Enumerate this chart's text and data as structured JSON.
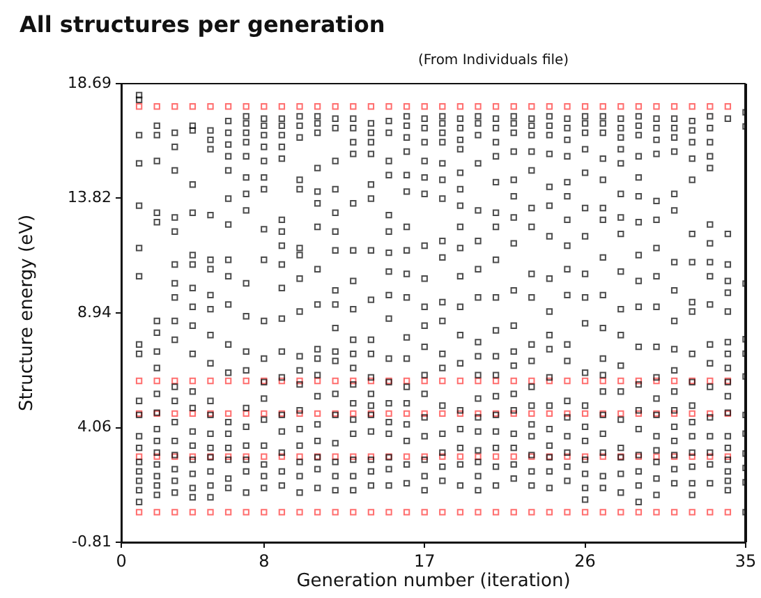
{
  "chart_data": {
    "type": "scatter",
    "title": "All structures per generation",
    "subtitle": "(From Individuals file)",
    "xlabel": "Generation number (iteration)",
    "ylabel": "Structure energy (eV)",
    "xlim": [
      0,
      35
    ],
    "xticks": [
      0,
      8,
      17,
      26,
      35
    ],
    "ylim": [
      -0.81,
      18.69
    ],
    "yticks": [
      -0.81,
      4.06,
      8.94,
      13.82,
      18.69
    ],
    "grid": false,
    "legend": false,
    "marker": "square",
    "series": [
      {
        "color": "#ff3030",
        "x": [
          1,
          2,
          3,
          4,
          5,
          6,
          7,
          8,
          9,
          10,
          11,
          12,
          13,
          14,
          15,
          16,
          17,
          18,
          19,
          20,
          21,
          22,
          23,
          24,
          25,
          26,
          27,
          28,
          29,
          30,
          31,
          32,
          33,
          34
        ],
        "values": [
          17.72,
          17.72,
          17.72,
          17.72,
          17.72,
          17.72,
          17.72,
          17.72,
          17.72,
          17.72,
          17.72,
          17.72,
          17.72,
          17.72,
          17.72,
          17.72,
          17.72,
          17.72,
          17.72,
          17.72,
          17.72,
          17.72,
          17.72,
          17.72,
          17.72,
          17.72,
          17.72,
          17.72,
          17.72,
          17.72,
          17.72,
          17.72,
          17.72,
          17.72
        ]
      },
      {
        "color": "#ff3030",
        "x": [
          1,
          2,
          3,
          4,
          5,
          6,
          7,
          8,
          9,
          10,
          11,
          12,
          13,
          14,
          15,
          16,
          17,
          18,
          19,
          20,
          21,
          22,
          23,
          24,
          25,
          26,
          27,
          28,
          29,
          30,
          31,
          32,
          33,
          34
        ],
        "values": [
          6.05,
          6.05,
          6.05,
          6.05,
          6.05,
          6.05,
          6.05,
          6.05,
          6.05,
          6.05,
          6.05,
          6.05,
          6.05,
          6.05,
          6.05,
          6.05,
          6.05,
          6.05,
          6.05,
          6.05,
          6.05,
          6.05,
          6.05,
          6.05,
          6.05,
          6.05,
          6.05,
          6.05,
          6.05,
          6.05,
          6.05,
          6.05,
          6.05,
          6.05
        ]
      },
      {
        "color": "#ff3030",
        "x": [
          1,
          2,
          3,
          4,
          5,
          6,
          7,
          8,
          9,
          10,
          11,
          12,
          13,
          14,
          15,
          16,
          17,
          18,
          19,
          20,
          21,
          22,
          23,
          24,
          25,
          26,
          27,
          28,
          29,
          30,
          31,
          32,
          33,
          34
        ],
        "values": [
          4.66,
          4.66,
          4.66,
          4.66,
          4.66,
          4.66,
          4.66,
          4.66,
          4.66,
          4.66,
          4.66,
          4.66,
          4.66,
          4.66,
          4.66,
          4.66,
          4.66,
          4.66,
          4.66,
          4.66,
          4.66,
          4.66,
          4.66,
          4.66,
          4.66,
          4.66,
          4.66,
          4.66,
          4.66,
          4.66,
          4.66,
          4.66,
          4.66,
          4.66
        ]
      },
      {
        "color": "#ff3030",
        "x": [
          1,
          2,
          3,
          4,
          5,
          6,
          7,
          8,
          9,
          10,
          11,
          12,
          13,
          14,
          15,
          16,
          17,
          18,
          19,
          20,
          21,
          22,
          23,
          24,
          25,
          26,
          27,
          28,
          29,
          30,
          31,
          32,
          33,
          34
        ],
        "values": [
          2.83,
          2.83,
          2.83,
          2.83,
          2.83,
          2.83,
          2.83,
          2.83,
          2.83,
          2.83,
          2.83,
          2.83,
          2.83,
          2.83,
          2.83,
          2.83,
          2.83,
          2.83,
          2.83,
          2.83,
          2.83,
          2.83,
          2.83,
          2.83,
          2.83,
          2.83,
          2.83,
          2.83,
          2.83,
          2.83,
          2.83,
          2.83,
          2.83,
          2.83
        ]
      },
      {
        "color": "#ff3030",
        "x": [
          1,
          2,
          3,
          4,
          5,
          6,
          7,
          8,
          9,
          10,
          11,
          12,
          13,
          14,
          15,
          16,
          17,
          18,
          19,
          20,
          21,
          22,
          23,
          24,
          25,
          26,
          27,
          28,
          29,
          30,
          31,
          32,
          33,
          34
        ],
        "values": [
          0.47,
          0.47,
          0.47,
          0.47,
          0.47,
          0.47,
          0.47,
          0.47,
          0.47,
          0.47,
          0.47,
          0.47,
          0.47,
          0.47,
          0.47,
          0.47,
          0.47,
          0.47,
          0.47,
          0.47,
          0.47,
          0.47,
          0.47,
          0.47,
          0.47,
          0.47,
          0.47,
          0.47,
          0.47,
          0.47,
          0.47,
          0.47,
          0.47,
          0.47
        ]
      },
      {
        "color": "#000000",
        "x": [
          1,
          1,
          1,
          1,
          1,
          1,
          1,
          1,
          1,
          1,
          1,
          1,
          1,
          1,
          1,
          1,
          1,
          1
        ],
        "values": [
          18.2,
          18.0,
          16.5,
          15.3,
          13.5,
          11.7,
          10.5,
          7.6,
          7.2,
          5.2,
          4.6,
          3.7,
          3.2,
          2.6,
          2.2,
          1.8,
          1.4,
          0.9
        ]
      },
      {
        "color": "#000000",
        "x": [
          2,
          2,
          2,
          2,
          2,
          2,
          2,
          2,
          2,
          2,
          2,
          2,
          2,
          2,
          2,
          2,
          2,
          2
        ],
        "values": [
          16.9,
          16.5,
          15.4,
          13.2,
          12.8,
          8.6,
          8.1,
          7.3,
          6.6,
          5.5,
          4.7,
          4.0,
          3.5,
          3.0,
          2.5,
          2.0,
          1.6,
          1.2
        ]
      },
      {
        "color": "#000000",
        "x": [
          3,
          3,
          3,
          3,
          3,
          3,
          3,
          3,
          3,
          3,
          3,
          3,
          3,
          3,
          3,
          3,
          3,
          3
        ],
        "values": [
          16.6,
          16.0,
          15.0,
          13.0,
          12.4,
          11.0,
          10.2,
          9.6,
          8.6,
          7.8,
          5.8,
          5.2,
          4.3,
          3.5,
          2.9,
          2.3,
          1.8,
          1.3
        ]
      },
      {
        "color": "#000000",
        "x": [
          4,
          4,
          4,
          4,
          4,
          4,
          4,
          4,
          4,
          4,
          4,
          4,
          4,
          4,
          4,
          4,
          4,
          4
        ],
        "values": [
          16.9,
          16.7,
          14.4,
          13.2,
          11.4,
          11.0,
          10.0,
          9.2,
          8.4,
          7.2,
          5.6,
          4.9,
          3.9,
          3.3,
          2.7,
          2.1,
          1.5,
          1.1
        ]
      },
      {
        "color": "#000000",
        "x": [
          5,
          5,
          5,
          5,
          5,
          5,
          5,
          5,
          5,
          5,
          5,
          5,
          5,
          5,
          5,
          5,
          5,
          5
        ],
        "values": [
          16.7,
          16.3,
          15.9,
          13.1,
          11.2,
          10.8,
          9.7,
          9.1,
          8.0,
          6.8,
          5.2,
          4.6,
          3.8,
          3.2,
          2.8,
          2.2,
          1.6,
          1.1
        ]
      },
      {
        "color": "#000000",
        "x": [
          6,
          6,
          6,
          6,
          6,
          6,
          6,
          6,
          6,
          6,
          6,
          6,
          6,
          6,
          6,
          6,
          6,
          6
        ],
        "values": [
          17.1,
          16.6,
          16.1,
          15.6,
          15.0,
          13.8,
          12.7,
          11.2,
          10.5,
          9.3,
          7.6,
          6.4,
          4.3,
          3.8,
          3.2,
          2.7,
          1.9,
          1.5
        ]
      },
      {
        "color": "#000000",
        "x": [
          7,
          7,
          7,
          7,
          7,
          7,
          7,
          7,
          7,
          7,
          7,
          7,
          7,
          7,
          7,
          7,
          7,
          7
        ],
        "values": [
          17.3,
          17.0,
          16.6,
          16.2,
          15.6,
          14.7,
          14.0,
          13.3,
          10.2,
          8.8,
          7.3,
          6.5,
          4.9,
          4.1,
          3.3,
          2.7,
          2.2,
          1.3
        ]
      },
      {
        "color": "#000000",
        "x": [
          8,
          8,
          8,
          8,
          8,
          8,
          8,
          8,
          8,
          8,
          8,
          8,
          8,
          8,
          8,
          8,
          8,
          8
        ],
        "values": [
          17.2,
          16.9,
          16.5,
          16.0,
          15.4,
          14.7,
          14.2,
          12.5,
          11.2,
          8.6,
          7.0,
          6.0,
          5.3,
          4.4,
          3.3,
          2.5,
          2.0,
          1.5
        ]
      },
      {
        "color": "#000000",
        "x": [
          9,
          9,
          9,
          9,
          9,
          9,
          9,
          9,
          9,
          9,
          9,
          9,
          9,
          9,
          9,
          9,
          9,
          9
        ],
        "values": [
          17.2,
          16.9,
          16.5,
          16.0,
          15.5,
          12.9,
          12.4,
          11.8,
          11.0,
          10.0,
          8.7,
          7.3,
          6.2,
          4.6,
          3.9,
          3.0,
          2.2,
          1.6
        ]
      },
      {
        "color": "#000000",
        "x": [
          10,
          10,
          10,
          10,
          10,
          10,
          10,
          10,
          10,
          10,
          10,
          10,
          10,
          10,
          10,
          10,
          10,
          10
        ],
        "values": [
          17.3,
          16.9,
          16.4,
          14.6,
          14.2,
          11.7,
          11.4,
          10.4,
          9.0,
          7.1,
          6.5,
          5.9,
          4.8,
          4.0,
          3.3,
          2.6,
          2.0,
          1.3
        ]
      },
      {
        "color": "#000000",
        "x": [
          11,
          11,
          11,
          11,
          11,
          11,
          11,
          11,
          11,
          11,
          11,
          11,
          11,
          11,
          11,
          11,
          11,
          11
        ],
        "values": [
          17.3,
          17.0,
          16.6,
          15.1,
          14.1,
          13.6,
          12.6,
          10.8,
          9.3,
          7.4,
          7.0,
          6.3,
          5.4,
          4.2,
          3.5,
          2.8,
          2.3,
          1.5
        ]
      },
      {
        "color": "#000000",
        "x": [
          12,
          12,
          12,
          12,
          12,
          12,
          12,
          12,
          12,
          12,
          12,
          12,
          12,
          12,
          12,
          12,
          12,
          12
        ],
        "values": [
          17.2,
          16.8,
          15.4,
          14.2,
          13.2,
          12.4,
          11.6,
          9.9,
          9.3,
          8.3,
          7.3,
          6.9,
          5.5,
          4.6,
          3.4,
          2.6,
          2.0,
          1.4
        ]
      },
      {
        "color": "#000000",
        "x": [
          13,
          13,
          13,
          13,
          13,
          13,
          13,
          13,
          13,
          13,
          13,
          13,
          13,
          13,
          13,
          13,
          13,
          13
        ],
        "values": [
          17.2,
          16.8,
          16.2,
          15.7,
          13.6,
          11.6,
          10.3,
          9.1,
          7.8,
          7.2,
          6.6,
          5.9,
          5.1,
          4.4,
          3.8,
          2.7,
          2.0,
          1.4
        ]
      },
      {
        "color": "#000000",
        "x": [
          14,
          14,
          14,
          14,
          14,
          14,
          14,
          14,
          14,
          14,
          14,
          14,
          14,
          14,
          14,
          14,
          14,
          14
        ],
        "values": [
          17.0,
          16.6,
          16.2,
          15.7,
          14.4,
          13.8,
          11.6,
          9.5,
          7.8,
          7.2,
          6.2,
          5.5,
          5.0,
          4.6,
          3.9,
          2.7,
          2.2,
          1.6
        ]
      },
      {
        "color": "#000000",
        "x": [
          15,
          15,
          15,
          15,
          15,
          15,
          15,
          15,
          15,
          15,
          15,
          15,
          15,
          15,
          15,
          15,
          15,
          15
        ],
        "values": [
          17.1,
          16.6,
          15.4,
          14.8,
          13.1,
          12.4,
          11.5,
          10.7,
          9.7,
          8.7,
          7.0,
          6.0,
          5.1,
          4.3,
          3.8,
          2.8,
          2.3,
          1.6
        ]
      },
      {
        "color": "#000000",
        "x": [
          16,
          16,
          16,
          16,
          16,
          16,
          16,
          16,
          16,
          16,
          16,
          16,
          16,
          16,
          16,
          16,
          16,
          16
        ],
        "values": [
          17.3,
          16.9,
          16.4,
          15.8,
          14.8,
          14.1,
          12.6,
          11.6,
          10.6,
          9.6,
          7.9,
          7.0,
          5.8,
          5.1,
          4.2,
          3.5,
          2.5,
          1.7
        ]
      },
      {
        "color": "#000000",
        "x": [
          17,
          17,
          17,
          17,
          17,
          17,
          17,
          17,
          17,
          17,
          17,
          17,
          17,
          17,
          17,
          17,
          17,
          17
        ],
        "values": [
          17.2,
          16.8,
          16.2,
          15.4,
          14.7,
          14.0,
          11.8,
          10.4,
          9.2,
          8.4,
          7.5,
          6.3,
          5.5,
          4.5,
          3.7,
          2.7,
          2.0,
          1.4
        ]
      },
      {
        "color": "#000000",
        "x": [
          18,
          18,
          18,
          18,
          18,
          18,
          18,
          18,
          18,
          18,
          18,
          18,
          18,
          18,
          18,
          18,
          18,
          18
        ],
        "values": [
          17.3,
          17.0,
          16.6,
          16.2,
          15.3,
          14.6,
          13.8,
          12.0,
          11.3,
          9.4,
          8.6,
          7.2,
          6.6,
          5.0,
          3.8,
          3.0,
          2.4,
          1.8
        ]
      },
      {
        "color": "#000000",
        "x": [
          19,
          19,
          19,
          19,
          19,
          19,
          19,
          19,
          19,
          19,
          19,
          19,
          19,
          19,
          19,
          19,
          19,
          19
        ],
        "values": [
          17.2,
          16.8,
          16.3,
          15.9,
          14.9,
          14.2,
          13.5,
          12.6,
          11.7,
          10.5,
          9.2,
          8.0,
          6.8,
          4.8,
          4.0,
          3.2,
          2.5,
          1.6
        ]
      },
      {
        "color": "#000000",
        "x": [
          20,
          20,
          20,
          20,
          20,
          20,
          20,
          20,
          20,
          20,
          20,
          20,
          20,
          20,
          20,
          20,
          20,
          20
        ],
        "values": [
          17.3,
          17.0,
          16.5,
          15.3,
          13.3,
          12.0,
          10.8,
          9.6,
          7.7,
          7.1,
          6.3,
          5.3,
          4.5,
          3.9,
          3.1,
          2.6,
          2.0,
          1.4
        ]
      },
      {
        "color": "#000000",
        "x": [
          21,
          21,
          21,
          21,
          21,
          21,
          21,
          21,
          21,
          21,
          21,
          21,
          21,
          21,
          21,
          21,
          21,
          21
        ],
        "values": [
          17.2,
          16.8,
          16.2,
          15.6,
          14.5,
          13.2,
          12.6,
          11.2,
          9.6,
          8.2,
          7.1,
          6.3,
          5.4,
          4.6,
          3.9,
          3.2,
          2.4,
          1.6
        ]
      },
      {
        "color": "#000000",
        "x": [
          22,
          22,
          22,
          22,
          22,
          22,
          22,
          22,
          22,
          22,
          22,
          22,
          22,
          22,
          22,
          22,
          22,
          22
        ],
        "values": [
          17.3,
          17.0,
          16.6,
          15.8,
          14.6,
          13.9,
          13.0,
          11.9,
          9.9,
          8.4,
          7.3,
          6.7,
          5.5,
          4.8,
          3.8,
          3.2,
          2.5,
          1.9
        ]
      },
      {
        "color": "#000000",
        "x": [
          23,
          23,
          23,
          23,
          23,
          23,
          23,
          23,
          23,
          23,
          23,
          23,
          23,
          23,
          23,
          23,
          23,
          23
        ],
        "values": [
          17.2,
          16.9,
          16.5,
          15.8,
          15.0,
          13.4,
          12.6,
          10.6,
          9.6,
          7.6,
          6.9,
          5.8,
          5.0,
          4.2,
          3.7,
          2.9,
          2.2,
          1.6
        ]
      },
      {
        "color": "#000000",
        "x": [
          24,
          24,
          24,
          24,
          24,
          24,
          24,
          24,
          24,
          24,
          24,
          24,
          24,
          24,
          24,
          24,
          24,
          24
        ],
        "values": [
          17.3,
          16.9,
          16.5,
          15.7,
          14.3,
          13.5,
          12.2,
          10.4,
          9.0,
          8.0,
          7.4,
          6.2,
          5.0,
          4.0,
          3.3,
          2.8,
          2.2,
          1.5
        ]
      },
      {
        "color": "#000000",
        "x": [
          25,
          25,
          25,
          25,
          25,
          25,
          25,
          25,
          25,
          25,
          25,
          25,
          25,
          25,
          25,
          25,
          25,
          25
        ],
        "values": [
          17.2,
          16.8,
          16.3,
          15.6,
          14.5,
          13.9,
          12.9,
          11.8,
          10.8,
          9.7,
          7.6,
          6.9,
          5.2,
          4.5,
          3.7,
          3.0,
          2.4,
          1.8
        ]
      },
      {
        "color": "#000000",
        "x": [
          26,
          26,
          26,
          26,
          26,
          26,
          26,
          26,
          26,
          26,
          26,
          26,
          26,
          26,
          26,
          26,
          26,
          26
        ],
        "values": [
          17.3,
          17.0,
          16.6,
          15.9,
          14.9,
          13.4,
          12.2,
          10.6,
          9.6,
          8.5,
          6.4,
          5.0,
          4.1,
          3.5,
          2.7,
          2.1,
          1.5,
          1.0
        ]
      },
      {
        "color": "#000000",
        "x": [
          27,
          27,
          27,
          27,
          27,
          27,
          27,
          27,
          27,
          27,
          27,
          27,
          27,
          27,
          27,
          27,
          27,
          27
        ],
        "values": [
          17.3,
          17.0,
          16.6,
          15.5,
          14.6,
          13.4,
          12.9,
          11.3,
          9.7,
          8.3,
          7.0,
          6.3,
          5.6,
          4.6,
          3.8,
          3.0,
          2.0,
          1.5
        ]
      },
      {
        "color": "#000000",
        "x": [
          28,
          28,
          28,
          28,
          28,
          28,
          28,
          28,
          28,
          28,
          28,
          28,
          28,
          28,
          28,
          28,
          28,
          28
        ],
        "values": [
          17.2,
          16.8,
          16.4,
          15.9,
          15.3,
          14.0,
          13.0,
          12.3,
          10.7,
          9.1,
          8.0,
          6.7,
          5.6,
          4.4,
          3.2,
          2.8,
          2.1,
          1.3
        ]
      },
      {
        "color": "#000000",
        "x": [
          29,
          29,
          29,
          29,
          29,
          29,
          29,
          29,
          29,
          29,
          29,
          29,
          29,
          29,
          29,
          29,
          29,
          29
        ],
        "values": [
          17.3,
          16.9,
          16.5,
          15.6,
          14.7,
          13.9,
          12.8,
          11.4,
          10.3,
          9.2,
          7.5,
          5.9,
          4.8,
          4.0,
          2.9,
          2.2,
          1.6,
          0.9
        ]
      },
      {
        "color": "#000000",
        "x": [
          30,
          30,
          30,
          30,
          30,
          30,
          30,
          30,
          30,
          30,
          30,
          30,
          30,
          30,
          30,
          30,
          30,
          30
        ],
        "values": [
          17.2,
          16.8,
          16.3,
          15.7,
          13.7,
          12.9,
          11.7,
          10.5,
          9.2,
          7.5,
          6.2,
          5.3,
          4.6,
          3.7,
          3.1,
          2.6,
          1.9,
          1.2
        ]
      },
      {
        "color": "#000000",
        "x": [
          31,
          31,
          31,
          31,
          31,
          31,
          31,
          31,
          31,
          31,
          31,
          31,
          31,
          31,
          31,
          31,
          31,
          31
        ],
        "values": [
          17.2,
          16.8,
          16.4,
          15.8,
          14.0,
          13.3,
          11.1,
          9.9,
          8.6,
          7.4,
          6.5,
          5.6,
          4.8,
          4.1,
          3.5,
          2.9,
          2.3,
          1.7
        ]
      },
      {
        "color": "#000000",
        "x": [
          32,
          32,
          32,
          32,
          32,
          32,
          32,
          32,
          32,
          32,
          32,
          32,
          32,
          32,
          32,
          32,
          32,
          32
        ],
        "values": [
          17.1,
          16.7,
          16.2,
          15.5,
          14.6,
          12.3,
          11.1,
          9.4,
          9.0,
          7.2,
          6.0,
          5.0,
          4.3,
          3.7,
          3.0,
          2.4,
          1.7,
          1.2
        ]
      },
      {
        "color": "#000000",
        "x": [
          33,
          33,
          33,
          33,
          33,
          33,
          33,
          33,
          33,
          33,
          33,
          33,
          33,
          33,
          33,
          33,
          33,
          33
        ],
        "values": [
          17.3,
          16.8,
          16.2,
          15.6,
          15.1,
          12.7,
          11.9,
          11.1,
          10.5,
          9.3,
          7.6,
          6.8,
          5.8,
          4.5,
          3.7,
          3.0,
          2.5,
          1.7
        ]
      },
      {
        "color": "#000000",
        "x": [
          34,
          34,
          34,
          34,
          34,
          34,
          34,
          34,
          34,
          34,
          34,
          34,
          34,
          34,
          34,
          34,
          34,
          34
        ],
        "values": [
          17.2,
          12.3,
          11.0,
          10.3,
          9.8,
          9.0,
          7.7,
          7.2,
          6.6,
          6.0,
          5.4,
          4.7,
          3.7,
          3.2,
          2.7,
          2.2,
          1.8,
          1.4
        ]
      },
      {
        "color": "#000000",
        "x": [
          35,
          35,
          35,
          35,
          35,
          35,
          35,
          35,
          35,
          35,
          35,
          35
        ],
        "values": [
          17.47,
          16.87,
          10.19,
          7.82,
          7.21,
          6.24,
          4.6,
          3.81,
          2.96,
          2.35,
          1.74,
          0.47
        ]
      }
    ]
  }
}
